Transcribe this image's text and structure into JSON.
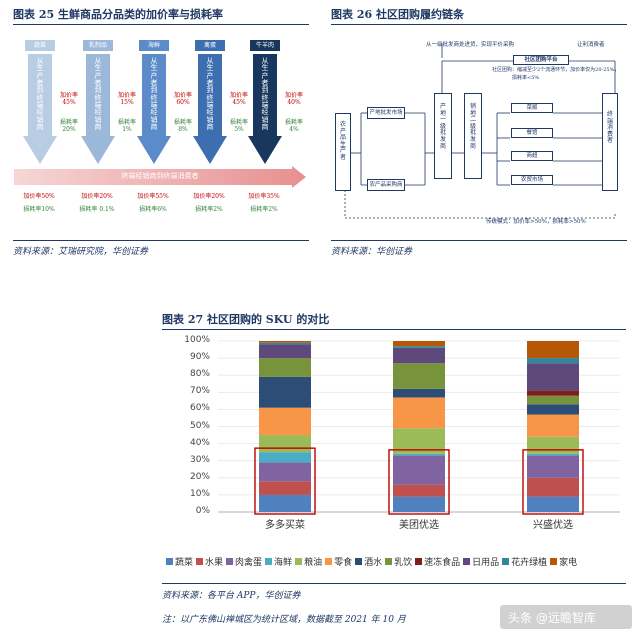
{
  "fig25": {
    "title": "图表 25   生鲜商品分品类的加价率与损耗率",
    "source": "资料来源：艾瑞研究院，华创证券",
    "columns": [
      {
        "name": "蔬菜",
        "vtext": "从生产者到终端经销商",
        "markup": "加价率 45%",
        "loss": "损耗率 20%",
        "end_markup": "加价率50%",
        "end_loss": "损耗率10%",
        "color": "#b8cce4",
        "arrow": "#dbe5f1"
      },
      {
        "name": "乳制品",
        "vtext": "从生产者到终端经销商",
        "markup": "加价率 15%",
        "loss": "损耗率 1%",
        "end_markup": "加价率20%",
        "end_loss": "损耗率 0.1%",
        "color": "#9bb7d9",
        "arrow": "#c6d7ec"
      },
      {
        "name": "海鲜",
        "vtext": "从生产者到终端经销商",
        "markup": "加价率 60%",
        "loss": "损耗率 8%",
        "end_markup": "加价率55%",
        "end_loss": "损耗率6%",
        "color": "#5b8cc9",
        "arrow": "#8eb0dc"
      },
      {
        "name": "禽蛋",
        "vtext": "从生产者到终端经销商",
        "markup": "加价率 45%",
        "loss": "损耗率 5%",
        "end_markup": "加价率20%",
        "end_loss": "损耗率2%",
        "color": "#3d6fb0",
        "arrow": "#6f97cc"
      },
      {
        "name": "牛羊肉",
        "vtext": "从生产者到终端经销商",
        "markup": "加价率 40%",
        "loss": "损耗率 4%",
        "end_markup": "加价率35%",
        "end_loss": "损耗率2%",
        "color": "#17375e",
        "arrow": "#2c5489"
      }
    ],
    "band_label": "终端经销商到终端消费者"
  },
  "fig26": {
    "title": "图表 26   社区团购履约链条",
    "source": "资料来源：华创证券",
    "top_note": "从一级批发商处进货，实现平价采购",
    "platform": "社区团购平台",
    "consumer_note": "让利消费者",
    "chain_note_1": "社区团购：缩减至少2个流通环节，加价率仅为20-25%，",
    "chain_note_2": "损耗率<5%",
    "producer": "农产品生产者",
    "origin_market": "产地批发市场",
    "purchaser": "农产品采购商",
    "origin_wholesaler": "产地一级批发商",
    "sales_wholesaler": "销地二级批发商",
    "end_consumer": "终端消费者",
    "retail": [
      "菜贩",
      "餐馆",
      "商超",
      "农贸市场"
    ],
    "traditional_note": "传统模式：加价率>50%，损耗率>50%"
  },
  "fig27": {
    "title": "图表 27   社区团购的 SKU 的对比",
    "source": "资料来源：各平台 APP，华创证券",
    "note": "注：以广东佛山禅城区为统计区域，数据截至 2021 年 10 月",
    "watermark": "头条 @远瞻智库"
  },
  "chart_data": {
    "type": "bar",
    "stacked": true,
    "categories": [
      "多多买菜",
      "美团优选",
      "兴盛优选"
    ],
    "ylim": [
      0,
      100
    ],
    "yticks": [
      "0%",
      "10%",
      "20%",
      "30%",
      "40%",
      "50%",
      "60%",
      "70%",
      "80%",
      "90%",
      "100%"
    ],
    "legend_position": "bottom",
    "highlight": "蔬菜、水果、肉禽蛋、海鲜 boxed in red",
    "series": [
      {
        "name": "蔬菜",
        "color": "#4e81bd",
        "values": [
          10,
          9,
          9
        ]
      },
      {
        "name": "水果",
        "color": "#c0504d",
        "values": [
          8,
          7,
          11
        ]
      },
      {
        "name": "肉禽蛋",
        "color": "#8064a2",
        "values": [
          11,
          17,
          13
        ]
      },
      {
        "name": "海鲜",
        "color": "#4bacc6",
        "values": [
          6,
          1,
          1
        ]
      },
      {
        "name": "粮油",
        "color": "#9bbb59",
        "values": [
          10,
          15,
          10
        ]
      },
      {
        "name": "零食",
        "color": "#f79646",
        "values": [
          16,
          18,
          13
        ]
      },
      {
        "name": "酒水",
        "color": "#2c4d75",
        "values": [
          18,
          5,
          6
        ]
      },
      {
        "name": "乳饮",
        "color": "#77933c",
        "values": [
          11,
          15,
          5
        ]
      },
      {
        "name": "速冻食品",
        "color": "#7f1f1b",
        "values": [
          0,
          0,
          3
        ]
      },
      {
        "name": "日用品",
        "color": "#5f497a",
        "values": [
          8,
          9,
          16
        ]
      },
      {
        "name": "花卉绿植",
        "color": "#31859c",
        "values": [
          1,
          1,
          3
        ]
      },
      {
        "name": "家电",
        "color": "#b65708",
        "values": [
          1,
          3,
          10
        ]
      }
    ]
  }
}
